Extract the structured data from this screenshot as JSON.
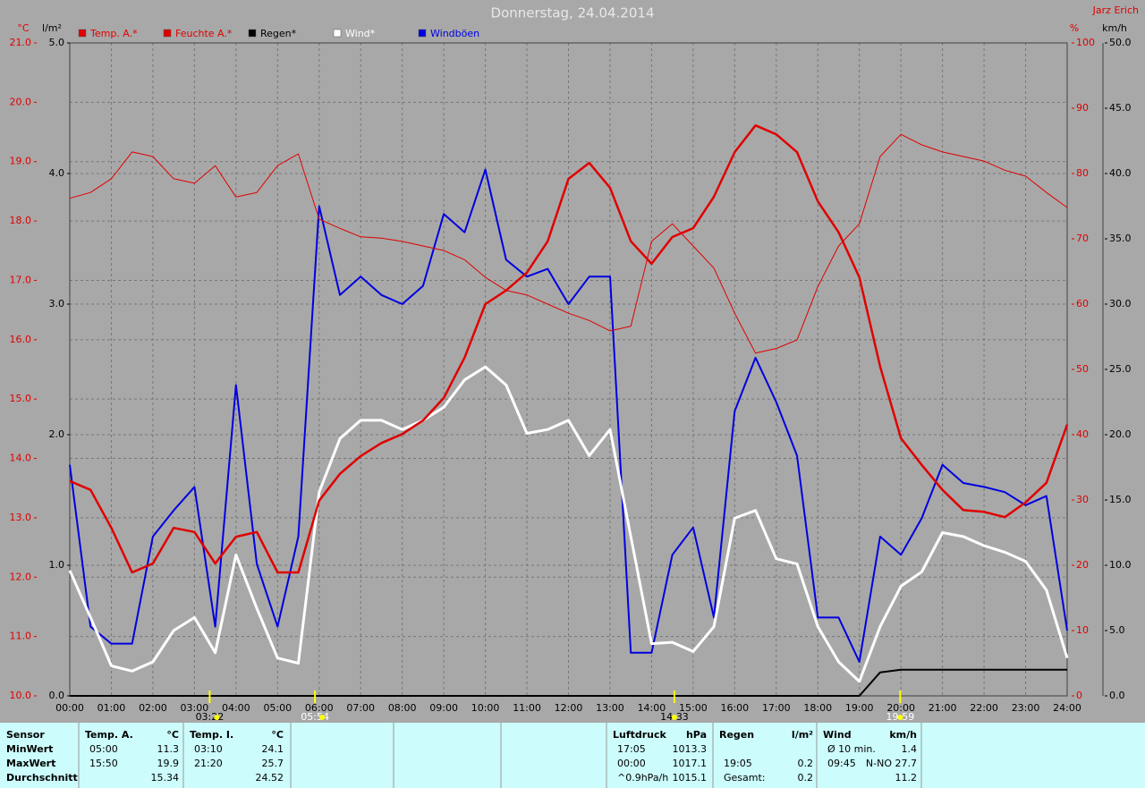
{
  "chart_data": {
    "type": "line",
    "title": "Donnerstag, 24.04.2014",
    "author": "Jarz Erich",
    "y_label": "°C",
    "y3_label": "l/m²",
    "y2_label": "%",
    "y4_label": "km/h",
    "grid": true,
    "x": [
      0,
      0.5,
      1,
      1.5,
      2,
      2.5,
      3,
      3.5,
      4,
      4.5,
      5,
      5.5,
      6,
      6.5,
      7,
      7.5,
      8,
      8.5,
      9,
      9.5,
      10,
      10.5,
      11,
      11.5,
      12,
      12.5,
      13,
      13.5,
      14,
      14.5,
      15,
      15.5,
      16,
      16.5,
      17,
      17.5,
      18,
      18.5,
      19,
      19.5,
      20,
      20.5,
      21,
      21.5,
      22,
      22.5,
      23,
      23.5,
      24
    ],
    "xlim": [
      0,
      24
    ],
    "xticks": [
      {
        "value": 0,
        "label": "00:00"
      },
      {
        "value": 1,
        "label": "01:00"
      },
      {
        "value": 2,
        "label": "02:00"
      },
      {
        "value": 3,
        "label": "03:00"
      },
      {
        "value": 4,
        "label": "04:00"
      },
      {
        "value": 5,
        "label": "05:00"
      },
      {
        "value": 6,
        "label": "06:00"
      },
      {
        "value": 7,
        "label": "07:00"
      },
      {
        "value": 8,
        "label": "08:00"
      },
      {
        "value": 9,
        "label": "09:00"
      },
      {
        "value": 10,
        "label": "10:00"
      },
      {
        "value": 11,
        "label": "11:00"
      },
      {
        "value": 12,
        "label": "12:00"
      },
      {
        "value": 13,
        "label": "13:00"
      },
      {
        "value": 14,
        "label": "14:00"
      },
      {
        "value": 15,
        "label": "15:00"
      },
      {
        "value": 16,
        "label": "16:00"
      },
      {
        "value": 17,
        "label": "17:00"
      },
      {
        "value": 18,
        "label": "18:00"
      },
      {
        "value": 19,
        "label": "19:00"
      },
      {
        "value": 20,
        "label": "20:00"
      },
      {
        "value": 21,
        "label": "21:00"
      },
      {
        "value": 22,
        "label": "22:00"
      },
      {
        "value": 23,
        "label": "23:00"
      },
      {
        "value": 24,
        "label": "24:00"
      }
    ],
    "ylim": [
      10,
      21
    ],
    "yticks": [
      {
        "value": 10,
        "label": "10.0"
      },
      {
        "value": 11,
        "label": "11.0"
      },
      {
        "value": 12,
        "label": "12.0"
      },
      {
        "value": 13,
        "label": "13.0"
      },
      {
        "value": 14,
        "label": "14.0"
      },
      {
        "value": 15,
        "label": "15.0"
      },
      {
        "value": 16,
        "label": "16.0"
      },
      {
        "value": 17,
        "label": "17.0"
      },
      {
        "value": 18,
        "label": "18.0"
      },
      {
        "value": 19,
        "label": "19.0"
      },
      {
        "value": 20,
        "label": "20.0"
      },
      {
        "value": 21,
        "label": "21.0"
      }
    ],
    "y2lim": [
      0,
      100
    ],
    "y2ticks": [
      0,
      10,
      20,
      30,
      40,
      50,
      60,
      70,
      80,
      90,
      100
    ],
    "y3lim": [
      0,
      5
    ],
    "y3ticks": [
      {
        "value": 0,
        "label": "0.0"
      },
      {
        "value": 1,
        "label": "1.0"
      },
      {
        "value": 2,
        "label": "2.0"
      },
      {
        "value": 3,
        "label": "3.0"
      },
      {
        "value": 4,
        "label": "4.0"
      },
      {
        "value": 5,
        "label": "5.0"
      }
    ],
    "y4lim": [
      0,
      50
    ],
    "y4ticks": [
      {
        "value": 0,
        "label": "0.0"
      },
      {
        "value": 5,
        "label": "5.0"
      },
      {
        "value": 10,
        "label": "10.0"
      },
      {
        "value": 15,
        "label": "15.0"
      },
      {
        "value": 20,
        "label": "20.0"
      },
      {
        "value": 25,
        "label": "25.0"
      },
      {
        "value": 30,
        "label": "30.0"
      },
      {
        "value": 35,
        "label": "35.0"
      },
      {
        "value": 40,
        "label": "40.0"
      },
      {
        "value": 45,
        "label": "45.0"
      },
      {
        "value": 50,
        "label": "50.0"
      }
    ],
    "series": [
      {
        "name": "Temp. A.*",
        "color": "#e00000",
        "axis": "y",
        "values": [
          13.62,
          13.47,
          12.83,
          12.08,
          12.23,
          12.83,
          12.76,
          12.23,
          12.68,
          12.76,
          12.08,
          12.08,
          13.29,
          13.74,
          14.04,
          14.26,
          14.41,
          14.64,
          15.02,
          15.7,
          16.6,
          16.83,
          17.13,
          17.66,
          18.71,
          18.98,
          18.56,
          17.66,
          17.28,
          17.73,
          17.88,
          18.41,
          19.16,
          19.61,
          19.46,
          19.16,
          18.33,
          17.81,
          17.05,
          15.55,
          14.34,
          13.89,
          13.47,
          13.13,
          13.1,
          13.01,
          13.26,
          13.59,
          14.57
        ]
      },
      {
        "name": "Feuchte A.*",
        "color": "#e00000",
        "axis": "y2",
        "values": [
          76.2,
          77.1,
          79.2,
          83.3,
          82.6,
          79.2,
          78.5,
          81.2,
          76.4,
          77.1,
          81.2,
          83.0,
          73.0,
          71.6,
          70.3,
          70.1,
          69.6,
          68.9,
          68.2,
          66.8,
          64.1,
          62.1,
          61.4,
          60.0,
          58.6,
          57.5,
          55.9,
          56.6,
          69.6,
          72.3,
          68.9,
          65.5,
          58.6,
          52.5,
          53.2,
          54.5,
          62.7,
          68.9,
          72.3,
          82.6,
          86.0,
          84.4,
          83.3,
          82.6,
          81.9,
          80.5,
          79.6,
          77.1,
          74.8
        ]
      },
      {
        "name": "Regen*",
        "color": "#000000",
        "axis": "y3",
        "values": [
          0,
          0,
          0,
          0,
          0,
          0,
          0,
          0,
          0,
          0,
          0,
          0,
          0,
          0,
          0,
          0,
          0,
          0,
          0,
          0,
          0,
          0,
          0,
          0,
          0,
          0,
          0,
          0,
          0,
          0,
          0,
          0,
          0,
          0,
          0,
          0,
          0,
          0,
          0,
          0.18,
          0.2,
          0.2,
          0.2,
          0.2,
          0.2,
          0.2,
          0.2,
          0.2,
          0.2
        ]
      },
      {
        "name": "Wind*",
        "color": "#ffffff",
        "axis": "y4",
        "values": [
          9.6,
          6.0,
          2.3,
          1.9,
          2.6,
          5.0,
          6.0,
          3.3,
          10.8,
          6.7,
          2.9,
          2.5,
          15.6,
          19.7,
          21.1,
          21.1,
          20.4,
          21.1,
          22.1,
          24.2,
          25.2,
          23.8,
          20.1,
          20.4,
          21.1,
          18.4,
          20.4,
          12.2,
          4.0,
          4.1,
          3.4,
          5.3,
          13.6,
          14.2,
          10.5,
          10.1,
          5.3,
          2.6,
          1.1,
          5.3,
          8.4,
          9.5,
          12.5,
          12.2,
          11.5,
          11.0,
          10.3,
          8.1,
          2.9
        ]
      },
      {
        "name": "Windböen",
        "color": "#0000e0",
        "axis": "y4",
        "values": [
          17.7,
          5.3,
          4.0,
          4.0,
          12.2,
          14.2,
          16.0,
          5.3,
          23.8,
          10.1,
          5.3,
          12.2,
          37.5,
          30.7,
          32.1,
          30.7,
          30.0,
          31.4,
          36.9,
          35.5,
          40.3,
          33.4,
          32.1,
          32.7,
          30.0,
          32.1,
          32.1,
          3.3,
          3.3,
          10.8,
          12.9,
          6.0,
          21.8,
          25.9,
          22.5,
          18.4,
          6.0,
          6.0,
          2.6,
          12.2,
          10.8,
          13.6,
          17.7,
          16.3,
          16.0,
          15.6,
          14.6,
          15.3,
          5.0
        ]
      }
    ],
    "markers": [
      {
        "x": 3.367,
        "label": "03:22"
      },
      {
        "x": 5.9,
        "label": "05:54"
      },
      {
        "x": 14.55,
        "label": "14:33"
      },
      {
        "x": 19.983,
        "label": "19:59"
      }
    ]
  },
  "stats": {
    "row_labels": [
      "Sensor",
      "MinWert",
      "MaxWert",
      "Durchschnitt"
    ],
    "blocks": [
      {
        "header": [
          "Temp. A.",
          "°C"
        ],
        "rows": [
          [
            "05:00",
            "11.3"
          ],
          [
            "15:50",
            "19.9"
          ],
          [
            null,
            "15.34"
          ]
        ]
      },
      {
        "header": [
          "Temp. I.",
          "°C"
        ],
        "rows": [
          [
            "03:10",
            "24.1"
          ],
          [
            "21:20",
            "25.7"
          ],
          [
            null,
            "24.52"
          ]
        ]
      },
      {
        "header": [
          "Luftdruck",
          "hPa"
        ],
        "rows": [
          [
            "17:05",
            "1013.3"
          ],
          [
            "00:00",
            "1017.1"
          ],
          [
            "^0.9hPa/h",
            "1015.1"
          ]
        ]
      },
      {
        "header": [
          "Regen",
          "l/m²"
        ],
        "rows": [
          [
            null,
            null
          ],
          [
            "19:05",
            "0.2"
          ],
          [
            "Gesamt:",
            "0.2"
          ]
        ]
      },
      {
        "header": [
          "Wind",
          "km/h"
        ],
        "rows": [
          [
            "Ø 10 min.",
            "1.4"
          ],
          [
            "09:45",
            "N-NO 27.7"
          ],
          [
            null,
            "11.2"
          ]
        ]
      }
    ]
  }
}
